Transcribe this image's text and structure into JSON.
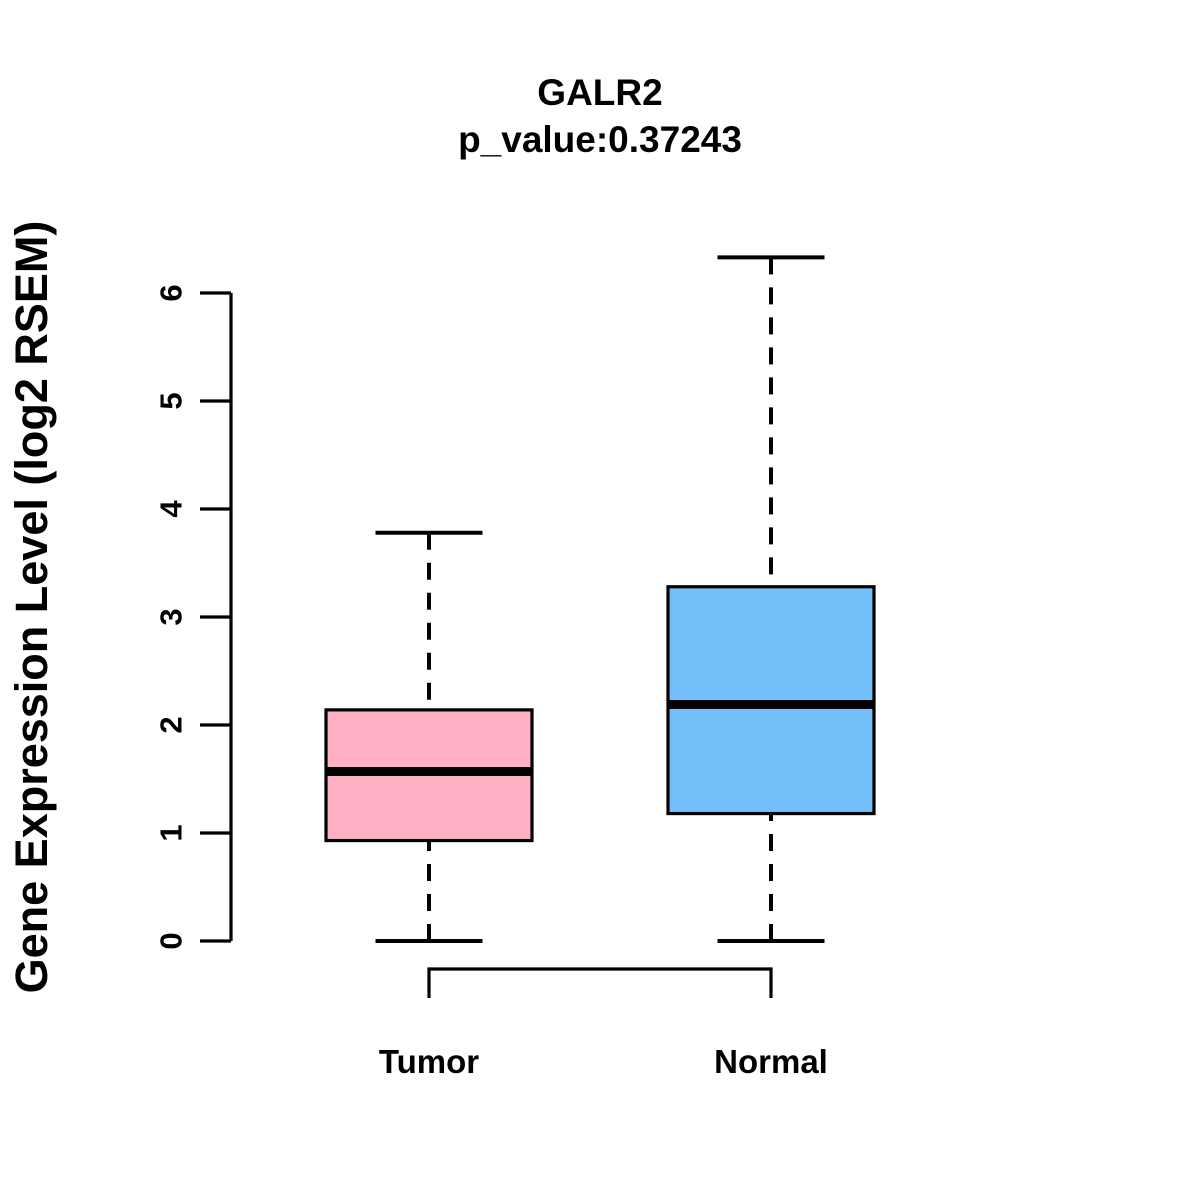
{
  "figure": {
    "background": "#FFFFFF",
    "foreground": "#000000"
  },
  "chart_data": {
    "type": "boxplot",
    "title": "GALR2",
    "subtitle": "p_value:0.37243",
    "ylabel": "Gene Expression Level (log2 RSEM)",
    "xlabel": "",
    "yticks": [
      "0",
      "1",
      "2",
      "3",
      "4",
      "5",
      "6"
    ],
    "ylim": [
      0,
      6.4
    ],
    "grid": false,
    "legend": "none",
    "categories": [
      "Tumor",
      "Normal"
    ],
    "series": [
      {
        "name": "Tumor",
        "color": "#FFB0C5",
        "whisker_low": 0,
        "q1": 0.93,
        "median": 1.57,
        "q3": 2.14,
        "whisker_high": 3.78
      },
      {
        "name": "Normal",
        "color": "#74BFF7",
        "whisker_low": 0,
        "q1": 1.18,
        "median": 2.19,
        "q3": 3.28,
        "whisker_high": 6.33
      }
    ]
  }
}
